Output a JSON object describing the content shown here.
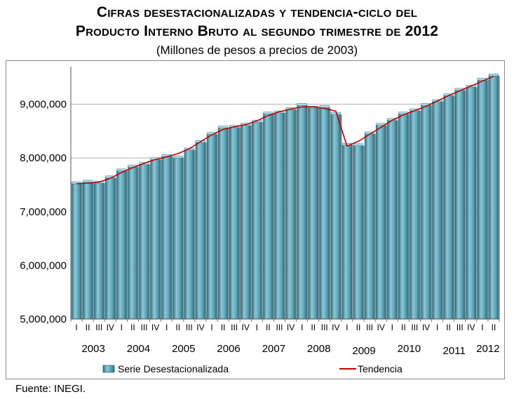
{
  "header": {
    "title_line1": "Cifras desestacionalizadas y tendencia-ciclo del",
    "title_line2": "Producto Interno Bruto al segundo trimestre de 2012",
    "subtitle": "(Millones de pesos a precios de 2003)"
  },
  "footer": {
    "source": "Fuente: INEGI."
  },
  "chart_data": {
    "type": "bar",
    "ylim": [
      5000000,
      9700000
    ],
    "yticks": [
      "5,000,000",
      "6,000,000",
      "7,000,000",
      "8,000,000",
      "9,000,000"
    ],
    "ytick_values": [
      5000000,
      6000000,
      7000000,
      8000000,
      9000000
    ],
    "grid": true,
    "legend_position": "bottom",
    "colors": {
      "bar": "#5ba6b8",
      "bar_dark": "#2e6f80",
      "line": "#c00000",
      "grid": "#b0b0b0"
    },
    "quarters": [
      "I",
      "II",
      "III",
      "IV",
      "I",
      "II",
      "III",
      "IV",
      "I",
      "II",
      "III",
      "IV",
      "I",
      "II",
      "III",
      "IV",
      "I",
      "II",
      "III",
      "IV",
      "I",
      "II",
      "III",
      "IV",
      "I",
      "II",
      "III",
      "IV",
      "I",
      "II",
      "III",
      "IV",
      "I",
      "II",
      "III",
      "IV",
      "I",
      "II"
    ],
    "years": [
      "2003",
      "2004",
      "2005",
      "2006",
      "2007",
      "2008",
      "2009",
      "2010",
      "2011",
      "2012"
    ],
    "series": [
      {
        "name": "Serie Desestacionalizada",
        "type": "bar",
        "values": [
          7530000,
          7560000,
          7540000,
          7640000,
          7770000,
          7840000,
          7890000,
          7980000,
          8040000,
          8010000,
          8160000,
          8300000,
          8450000,
          8570000,
          8580000,
          8620000,
          8680000,
          8830000,
          8850000,
          8910000,
          8990000,
          8940000,
          8950000,
          8820000,
          8250000,
          8240000,
          8460000,
          8620000,
          8710000,
          8830000,
          8890000,
          8990000,
          9060000,
          9170000,
          9270000,
          9330000,
          9460000,
          9540000
        ]
      },
      {
        "name": "Tendencia",
        "type": "line",
        "values": [
          7520000,
          7530000,
          7550000,
          7620000,
          7730000,
          7820000,
          7900000,
          7970000,
          8020000,
          8080000,
          8170000,
          8300000,
          8430000,
          8530000,
          8580000,
          8620000,
          8690000,
          8790000,
          8860000,
          8910000,
          8950000,
          8950000,
          8920000,
          8870000,
          8220000,
          8310000,
          8440000,
          8570000,
          8700000,
          8800000,
          8880000,
          8960000,
          9060000,
          9160000,
          9250000,
          9340000,
          9430000,
          9520000
        ]
      }
    ]
  }
}
